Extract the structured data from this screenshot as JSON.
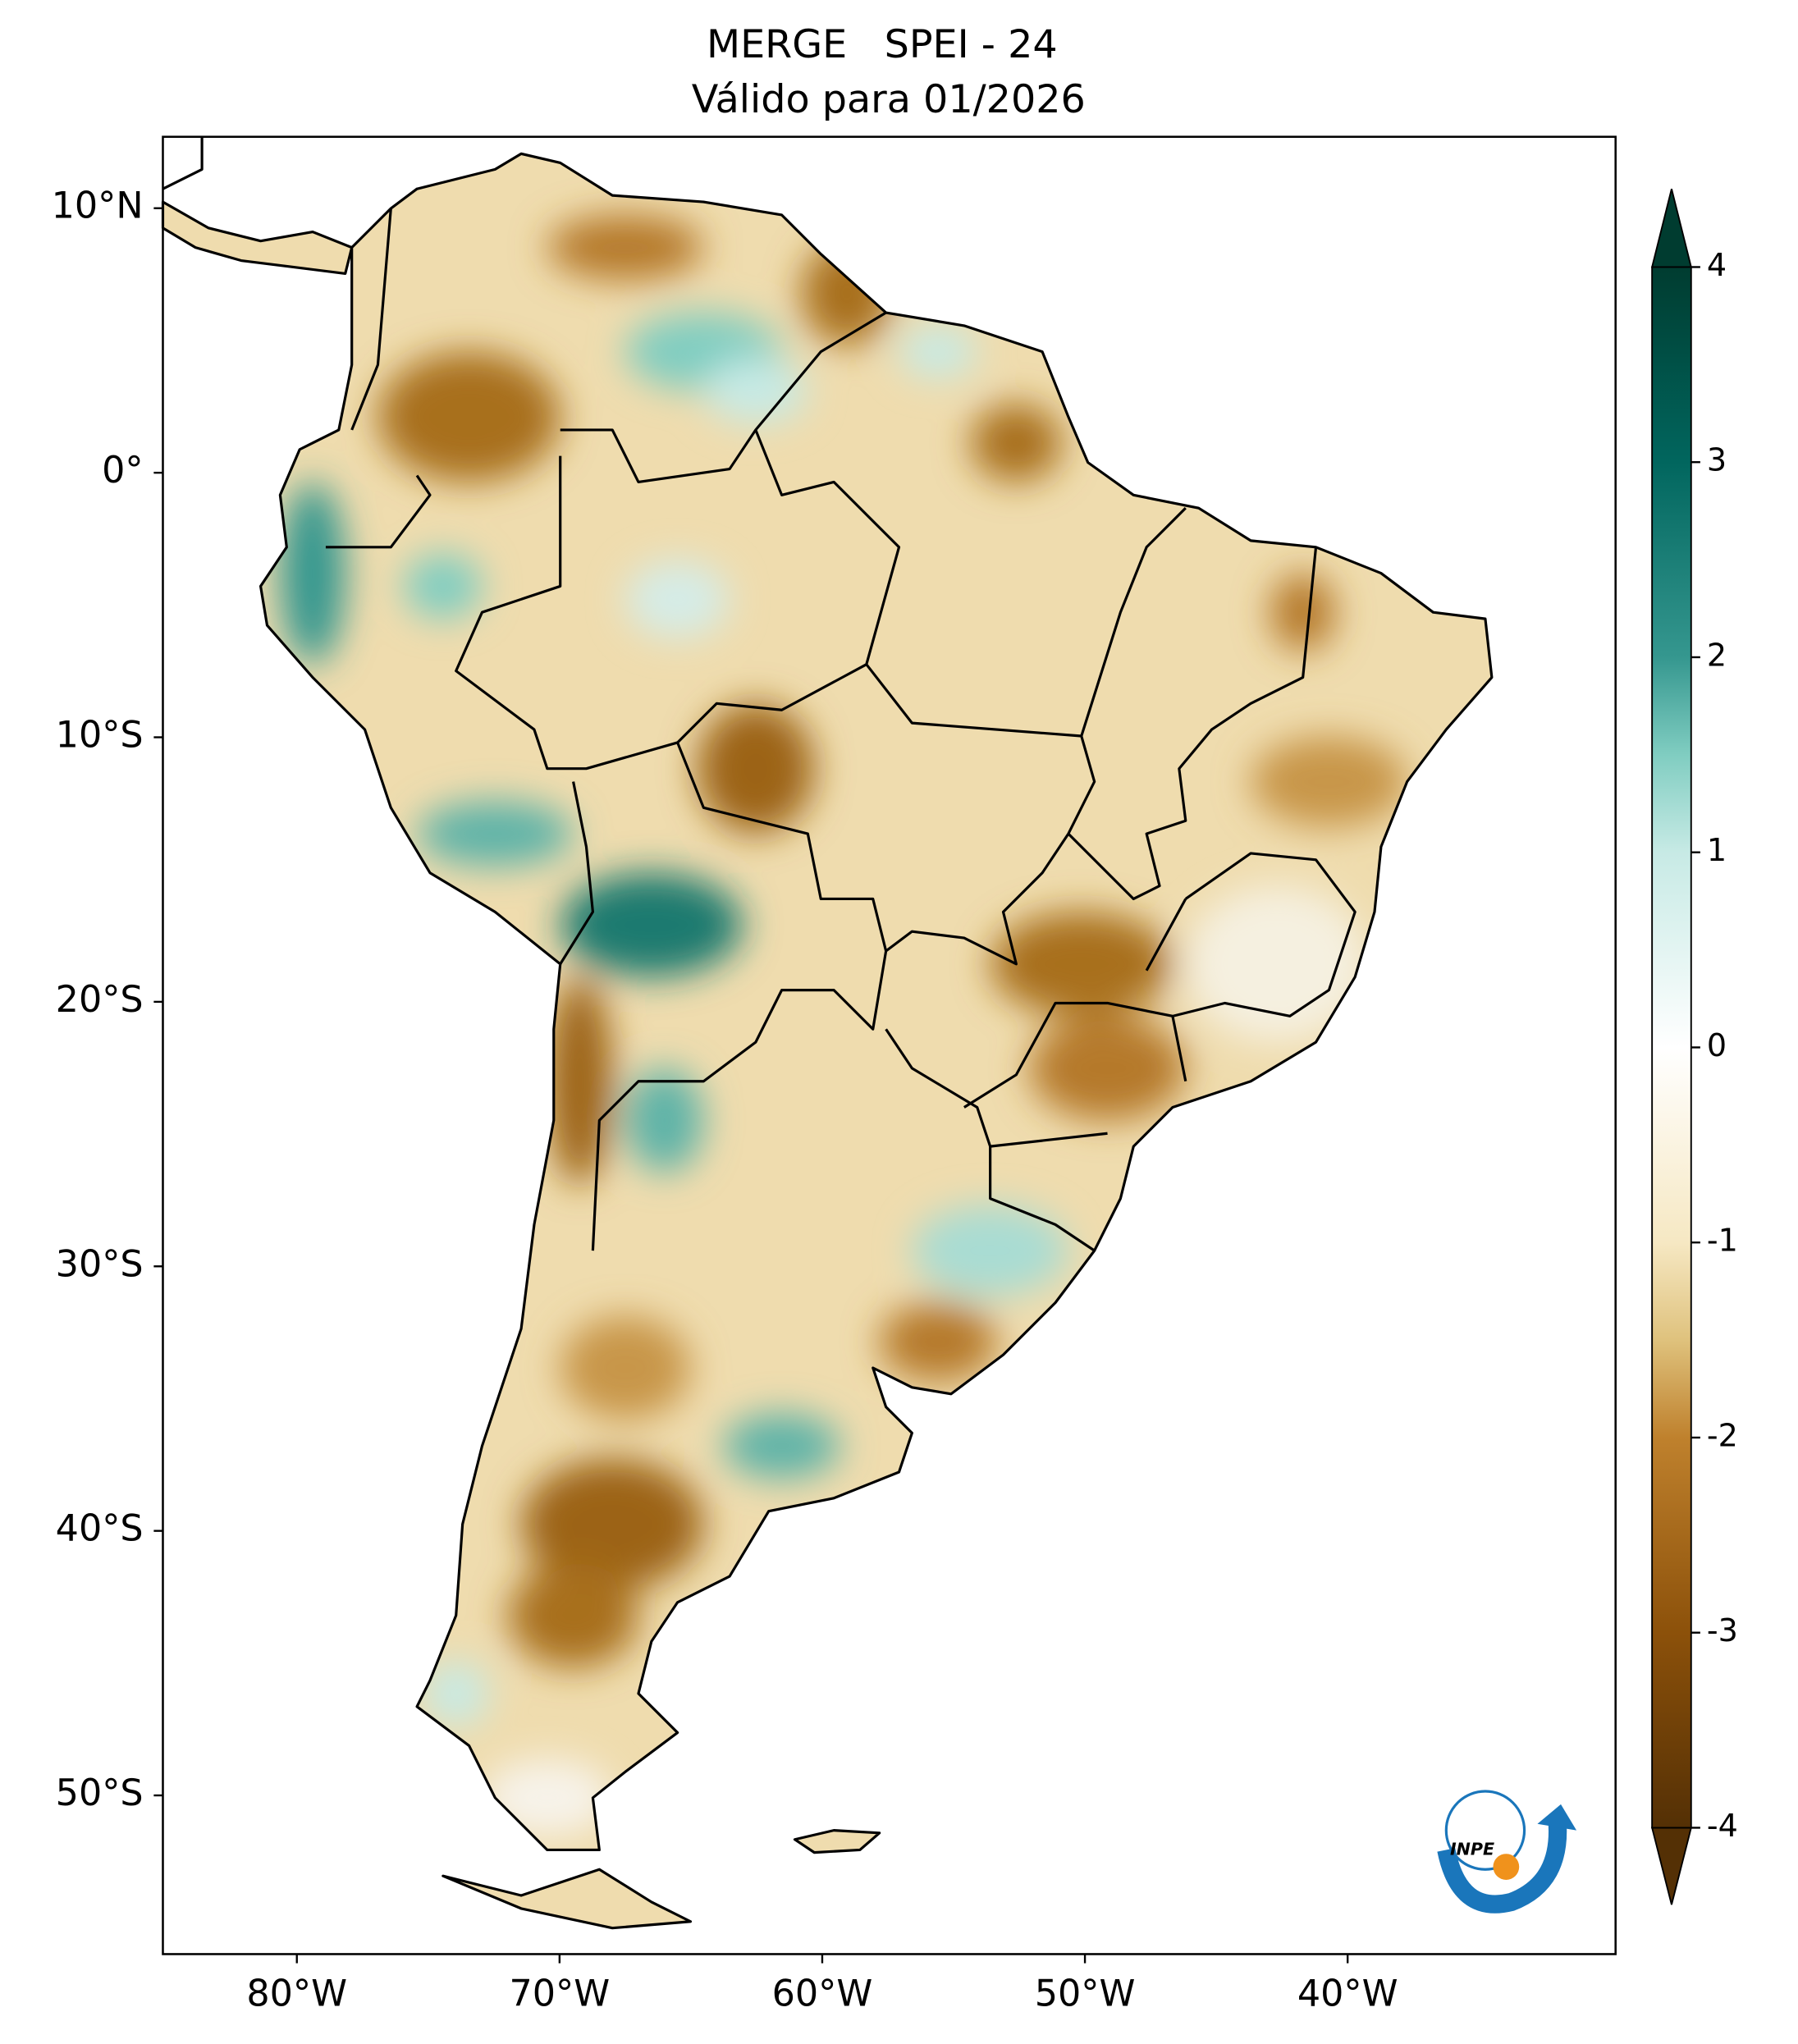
{
  "map": {
    "title": [
      "MERGE   SPEI - 24",
      "Válido para 01/2026"
    ],
    "xlim": [
      -85.1,
      -29.8
    ],
    "ylim": [
      -56.0,
      12.7
    ],
    "lon_ticks": [
      {
        "value": -80,
        "label": "80°W"
      },
      {
        "value": -70,
        "label": "70°W"
      },
      {
        "value": -60,
        "label": "60°W"
      },
      {
        "value": -50,
        "label": "50°W"
      },
      {
        "value": -40,
        "label": "40°W"
      }
    ],
    "lat_ticks": [
      {
        "value": 10,
        "label": "10°N"
      },
      {
        "value": 0,
        "label": "0°"
      },
      {
        "value": -10,
        "label": "10°S"
      },
      {
        "value": -20,
        "label": "20°S"
      },
      {
        "value": -30,
        "label": "30°S"
      },
      {
        "value": -40,
        "label": "40°S"
      },
      {
        "value": -50,
        "label": "50°S"
      }
    ],
    "colorbar": {
      "lim": [
        -4,
        4
      ],
      "ticks": [
        4,
        3,
        2,
        1,
        0,
        -1,
        -2,
        -3,
        -4
      ]
    },
    "logo_text": "INPE"
  }
}
